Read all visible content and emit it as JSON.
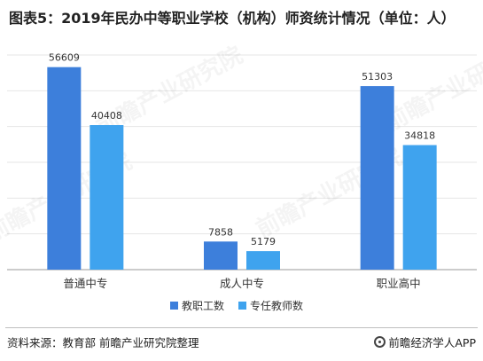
{
  "title": "图表5：2019年民办中等职业学校（机构）师资统计情况（单位：人）",
  "source": "资料来源：教育部 前瞻产业研究院整理",
  "brand": "前瞻经济学人APP",
  "watermark": "前瞻产业研究院",
  "chart_data": {
    "type": "bar",
    "categories": [
      "普通中专",
      "成人中专",
      "职业高中"
    ],
    "series": [
      {
        "name": "教职工数",
        "values": [
          56609,
          7858,
          51303
        ],
        "color": "#3d7fdb"
      },
      {
        "name": "专任教师数",
        "values": [
          40408,
          5179,
          34818
        ],
        "color": "#3fa3ee"
      }
    ],
    "ylim": [
      0,
      60000
    ],
    "grid": true,
    "legend": "bottom-center",
    "data_labels": true
  }
}
